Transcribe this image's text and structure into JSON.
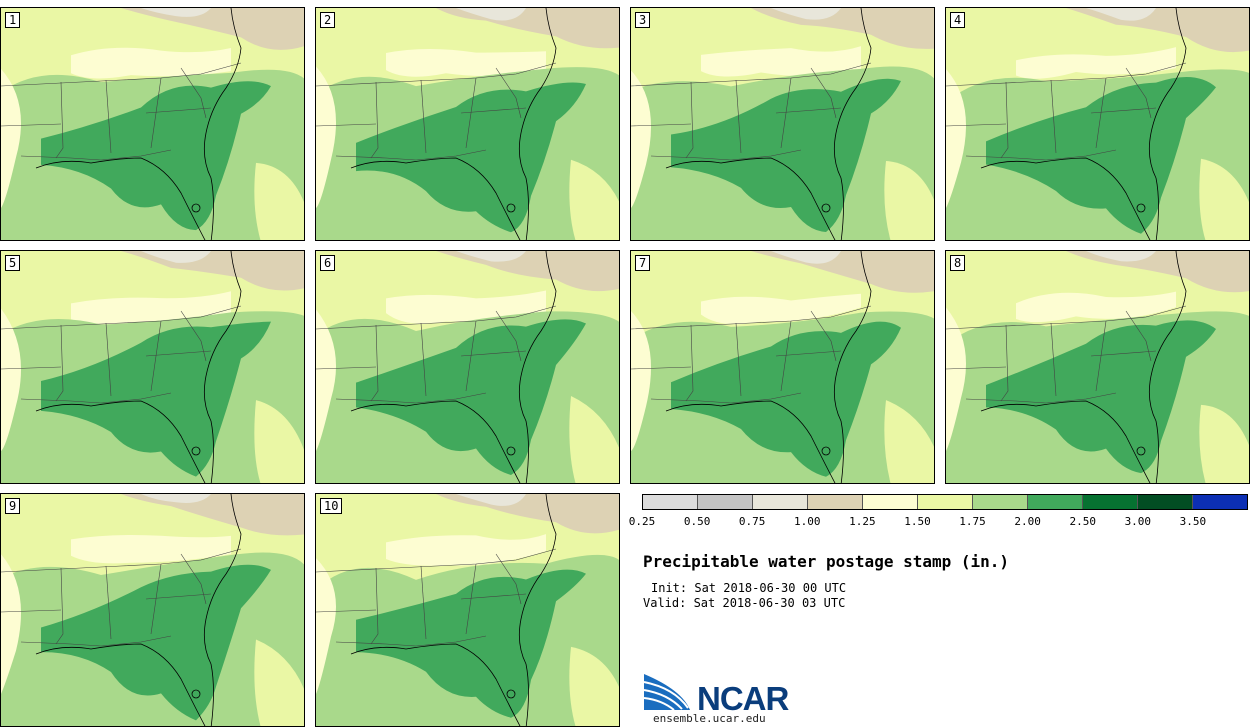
{
  "panels": [
    {
      "label": "1"
    },
    {
      "label": "2"
    },
    {
      "label": "3"
    },
    {
      "label": "4"
    },
    {
      "label": "5"
    },
    {
      "label": "6"
    },
    {
      "label": "7"
    },
    {
      "label": "8"
    },
    {
      "label": "9"
    },
    {
      "label": "10"
    }
  ],
  "legend": {
    "colors": [
      "#dcdcdc",
      "#c4c4c4",
      "#e8e6da",
      "#ddd2b4",
      "#fdfdd2",
      "#eaf7a5",
      "#a9d98b",
      "#41a95c",
      "#067231",
      "#024d23",
      "#0c2fb4"
    ],
    "ticks": [
      "0.25",
      "0.50",
      "0.75",
      "1.00",
      "1.25",
      "1.50",
      "1.75",
      "2.00",
      "2.50",
      "3.00",
      "3.50"
    ]
  },
  "info": {
    "title": "Precipitable water postage stamp (in.)",
    "init": "Init: Sat 2018-06-30 00 UTC",
    "valid": "Valid: Sat 2018-06-30 03 UTC"
  },
  "logo": {
    "text": "NCAR",
    "url": "ensemble.ucar.edu"
  }
}
